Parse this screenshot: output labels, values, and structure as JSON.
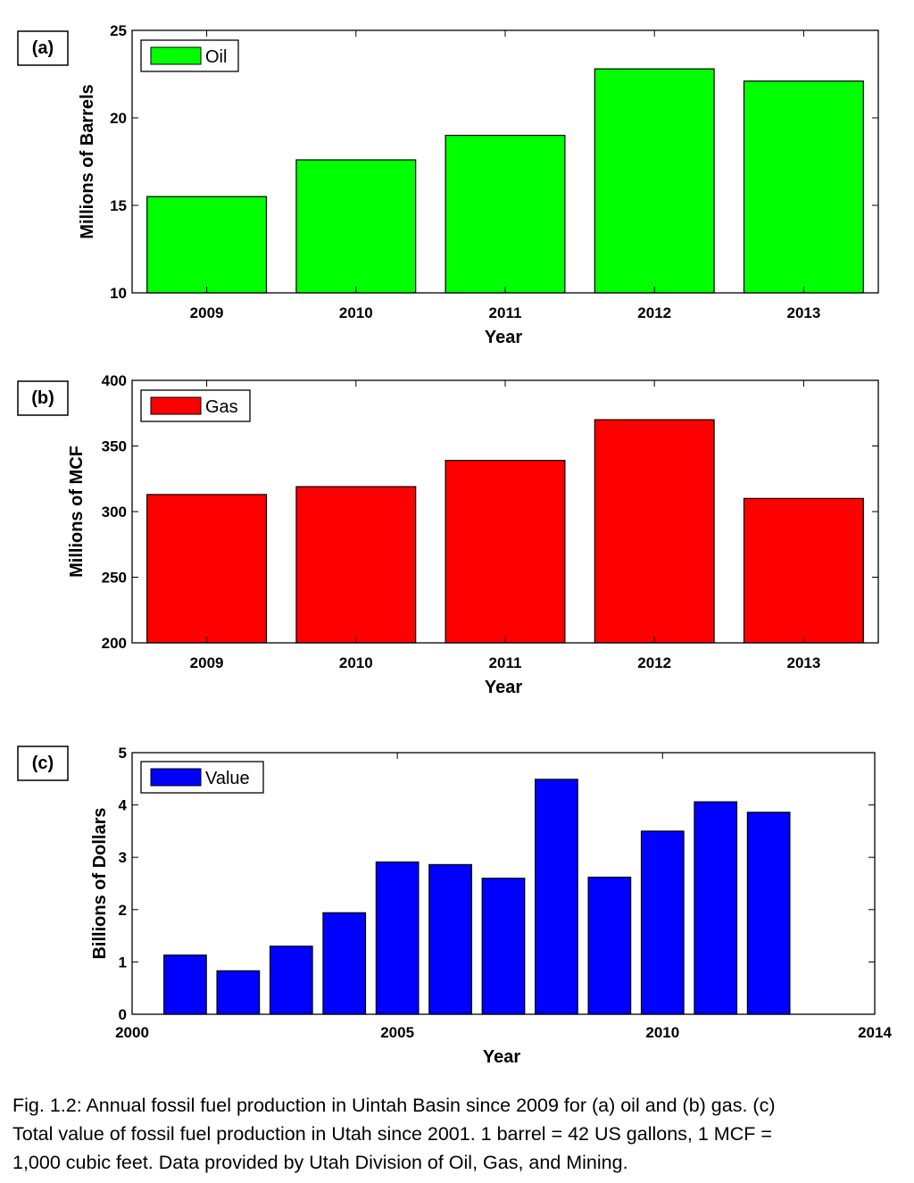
{
  "chart_data": [
    {
      "type": "bar",
      "panel_label": "(a)",
      "categories": [
        "2009",
        "2010",
        "2011",
        "2012",
        "2013"
      ],
      "series": [
        {
          "name": "Oil",
          "values": [
            15.5,
            17.6,
            19.0,
            22.8,
            22.1
          ]
        }
      ],
      "xlabel": "Year",
      "ylabel": "Millions of Barrels",
      "ylim": [
        10,
        25
      ],
      "yticks": [
        "10",
        "15",
        "20",
        "25"
      ],
      "grid": false,
      "legend_position": "top-left",
      "colors": {
        "bar": "#00ff00",
        "edge": "#000000"
      }
    },
    {
      "type": "bar",
      "panel_label": "(b)",
      "categories": [
        "2009",
        "2010",
        "2011",
        "2012",
        "2013"
      ],
      "series": [
        {
          "name": "Gas",
          "values": [
            313,
            319,
            339,
            370,
            310
          ]
        }
      ],
      "xlabel": "Year",
      "ylabel": "Millions of MCF",
      "ylim": [
        200,
        400
      ],
      "yticks": [
        "200",
        "250",
        "300",
        "350",
        "400"
      ],
      "grid": false,
      "legend_position": "top-left",
      "colors": {
        "bar": "#ff0000",
        "edge": "#000000"
      }
    },
    {
      "type": "bar",
      "panel_label": "(c)",
      "x": [
        2001,
        2002,
        2003,
        2004,
        2005,
        2006,
        2007,
        2008,
        2009,
        2010,
        2011,
        2012
      ],
      "series": [
        {
          "name": "Value",
          "values": [
            1.13,
            0.83,
            1.3,
            1.94,
            2.91,
            2.86,
            2.6,
            4.49,
            2.62,
            3.5,
            4.06,
            3.86
          ]
        }
      ],
      "xlabel": "Year",
      "ylabel": "Billions of Dollars",
      "xlim": [
        2000,
        2014
      ],
      "xticks": [
        "2000",
        "2005",
        "2010",
        "2014"
      ],
      "ylim": [
        0,
        5
      ],
      "yticks": [
        "0",
        "1",
        "2",
        "3",
        "4",
        "5"
      ],
      "grid": false,
      "legend_position": "top-left",
      "colors": {
        "bar": "#0000ff",
        "edge": "#000000"
      }
    }
  ],
  "caption": {
    "line1": "Fig. 1.2: Annual fossil fuel production in Uintah Basin since 2009 for (a) oil and (b) gas. (c)",
    "line2": "Total value of fossil fuel production in Utah since 2001.  1 barrel = 42 US gallons, 1 MCF =",
    "line3": "1,000 cubic feet.  Data provided by Utah Division of Oil, Gas, and Mining."
  }
}
